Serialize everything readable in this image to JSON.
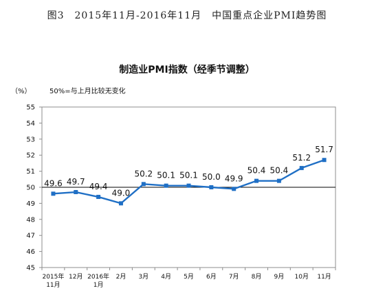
{
  "figure_title": "图3　2015年11月-2016年11月　中国重点企业PMI趋势图",
  "chart_data": {
    "type": "line",
    "title": "制造业PMI指数（经季节调整）",
    "y_unit": "（%）",
    "note": "50%=与上月比较无变化",
    "ylim": [
      45,
      55
    ],
    "yticks": [
      45,
      46,
      47,
      48,
      49,
      50,
      51,
      52,
      53,
      54,
      55
    ],
    "reference_line": 50,
    "grid": false,
    "color": "#1f6fc5",
    "categories": [
      [
        "2015年",
        "11月"
      ],
      [
        "12月"
      ],
      [
        "2016年",
        "1月"
      ],
      [
        "2月"
      ],
      [
        "3月"
      ],
      [
        "4月"
      ],
      [
        "5月"
      ],
      [
        "6月"
      ],
      [
        "7月"
      ],
      [
        "8月"
      ],
      [
        "9月"
      ],
      [
        "10月"
      ],
      [
        "11月"
      ]
    ],
    "values": [
      49.6,
      49.7,
      49.4,
      49.0,
      50.2,
      50.1,
      50.1,
      50.0,
      49.9,
      50.4,
      50.4,
      51.2,
      51.7
    ],
    "data_labels": [
      "49.6",
      "49.7",
      "49.4",
      "49.0",
      "50.2",
      "50.1",
      "50.1",
      "50.0",
      "49.9",
      "50.4",
      "50.4",
      "51.2",
      "51.7"
    ]
  }
}
